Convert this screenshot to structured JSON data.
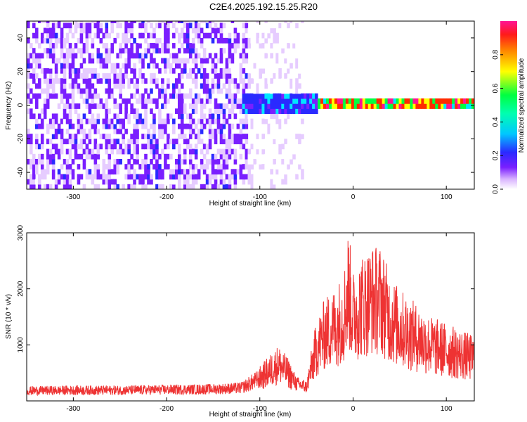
{
  "figure_title": "C2E4.2025.192.15.25.R20",
  "chart_data": [
    {
      "type": "heatmap",
      "title": "C2E4.2025.192.15.25.R20",
      "xlabel": "Height of straight line (km)",
      "ylabel": "Frequency (Hz)",
      "xlim": [
        -350,
        130
      ],
      "ylim": [
        -50,
        50
      ],
      "x_ticks": [
        -300,
        -200,
        -100,
        0,
        100
      ],
      "y_ticks": [
        -40,
        -20,
        0,
        20,
        40
      ],
      "grid": false,
      "colorbar": {
        "label": "Normalized spectral amplitude",
        "range": [
          0.0,
          1.0
        ],
        "ticks": [
          0.0,
          0.2,
          0.4,
          0.6,
          0.8
        ],
        "colormap": [
          "#ffffff",
          "#e6ccff",
          "#7a1fff",
          "#2a2aff",
          "#00e5ff",
          "#00ff40",
          "#ffff00",
          "#ff2a00",
          "#ff1493"
        ]
      },
      "regions": [
        {
          "x": [
            -350,
            -115
          ],
          "desc_value": 0.3
        },
        {
          "x": [
            -115,
            -55
          ],
          "desc_value": 0.08
        },
        {
          "x": [
            -120,
            -40
          ],
          "band_hz": [
            -6,
            6
          ],
          "desc_value": 0.45
        },
        {
          "x": [
            -40,
            130
          ],
          "band_hz": [
            -2,
            2
          ],
          "desc_value": 0.9
        }
      ]
    },
    {
      "type": "line",
      "xlabel": "Height of straight line (km)",
      "ylabel": "SNR (10 * v/v)",
      "xlim": [
        -350,
        130
      ],
      "ylim": [
        0,
        3000
      ],
      "x_ticks": [
        -300,
        -200,
        -100,
        0,
        100
      ],
      "y_ticks": [
        1000,
        2000,
        3000
      ],
      "grid": false,
      "series": [
        {
          "color": "#ee3333",
          "x": [
            -350,
            -300,
            -250,
            -200,
            -150,
            -120,
            -100,
            -80,
            -70,
            -60,
            -50,
            -40,
            -30,
            -20,
            -10,
            -5,
            0,
            10,
            20,
            30,
            40,
            50,
            60,
            70,
            80,
            90,
            100,
            110,
            120,
            130
          ],
          "y": [
            180,
            190,
            190,
            200,
            210,
            230,
            400,
            650,
            500,
            300,
            250,
            900,
            1200,
            1300,
            1500,
            2000,
            1500,
            1700,
            1800,
            1800,
            1450,
            1300,
            1200,
            1100,
            1000,
            950,
            900,
            850,
            800,
            750
          ]
        }
      ]
    }
  ]
}
